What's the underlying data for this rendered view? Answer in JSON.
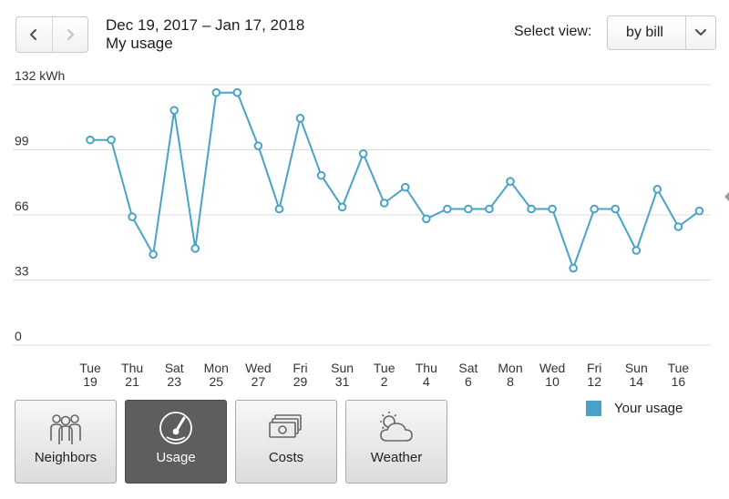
{
  "header": {
    "date_range": "Dec 19, 2017 – Jan 17, 2018",
    "subtitle": "My usage",
    "select_label": "Select view:",
    "select_value": "by bill",
    "prev_icon": "chevron-left-icon",
    "next_icon": "chevron-right-icon",
    "caret_icon": "chevron-down-icon"
  },
  "chart_data": {
    "type": "line",
    "title": "",
    "xlabel": "",
    "ylabel": "",
    "y_unit_label": "132 kWh",
    "ylim": [
      0,
      132
    ],
    "yticks": [
      0,
      33,
      66,
      99,
      132
    ],
    "ytick_labels": [
      "0",
      "33",
      "66",
      "99",
      "132 kWh"
    ],
    "grid": true,
    "legend_position": "bottom-right",
    "x": [
      "Dec 19",
      "Dec 20",
      "Dec 21",
      "Dec 22",
      "Dec 23",
      "Dec 24",
      "Dec 25",
      "Dec 26",
      "Dec 27",
      "Dec 28",
      "Dec 29",
      "Dec 30",
      "Dec 31",
      "Jan 1",
      "Jan 2",
      "Jan 3",
      "Jan 4",
      "Jan 5",
      "Jan 6",
      "Jan 7",
      "Jan 8",
      "Jan 9",
      "Jan 10",
      "Jan 11",
      "Jan 12",
      "Jan 13",
      "Jan 14",
      "Jan 15",
      "Jan 16",
      "Jan 17"
    ],
    "x_tick_labels": [
      {
        "day": "Tue",
        "num": "19",
        "index": 0
      },
      {
        "day": "Thu",
        "num": "21",
        "index": 2
      },
      {
        "day": "Sat",
        "num": "23",
        "index": 4
      },
      {
        "day": "Mon",
        "num": "25",
        "index": 6
      },
      {
        "day": "Wed",
        "num": "27",
        "index": 8
      },
      {
        "day": "Fri",
        "num": "29",
        "index": 10
      },
      {
        "day": "Sun",
        "num": "31",
        "index": 12
      },
      {
        "day": "Tue",
        "num": "2",
        "index": 14
      },
      {
        "day": "Thu",
        "num": "4",
        "index": 16
      },
      {
        "day": "Sat",
        "num": "6",
        "index": 18
      },
      {
        "day": "Mon",
        "num": "8",
        "index": 20
      },
      {
        "day": "Wed",
        "num": "10",
        "index": 22
      },
      {
        "day": "Fri",
        "num": "12",
        "index": 24
      },
      {
        "day": "Sun",
        "num": "14",
        "index": 26
      },
      {
        "day": "Tue",
        "num": "16",
        "index": 28
      }
    ],
    "series": [
      {
        "name": "Your usage",
        "color": "#4aa3c6",
        "values": [
          104,
          104,
          65,
          46,
          119,
          49,
          128,
          128,
          101,
          69,
          115,
          86,
          70,
          97,
          72,
          80,
          64,
          69,
          69,
          69,
          83,
          69,
          69,
          39,
          69,
          69,
          48,
          79,
          60,
          68
        ]
      }
    ]
  },
  "tabs": [
    {
      "label": "Neighbors",
      "icon": "people-icon",
      "active": false
    },
    {
      "label": "Usage",
      "icon": "gauge-icon",
      "active": true
    },
    {
      "label": "Costs",
      "icon": "money-icon",
      "active": false
    },
    {
      "label": "Weather",
      "icon": "sun-cloud-icon",
      "active": false
    }
  ],
  "legend": {
    "label": "Your usage",
    "color": "#4aa3c6"
  },
  "colors": {
    "line": "#4aa3c6",
    "grid": "#dddddd",
    "active_tab": "#5e5e5e"
  }
}
